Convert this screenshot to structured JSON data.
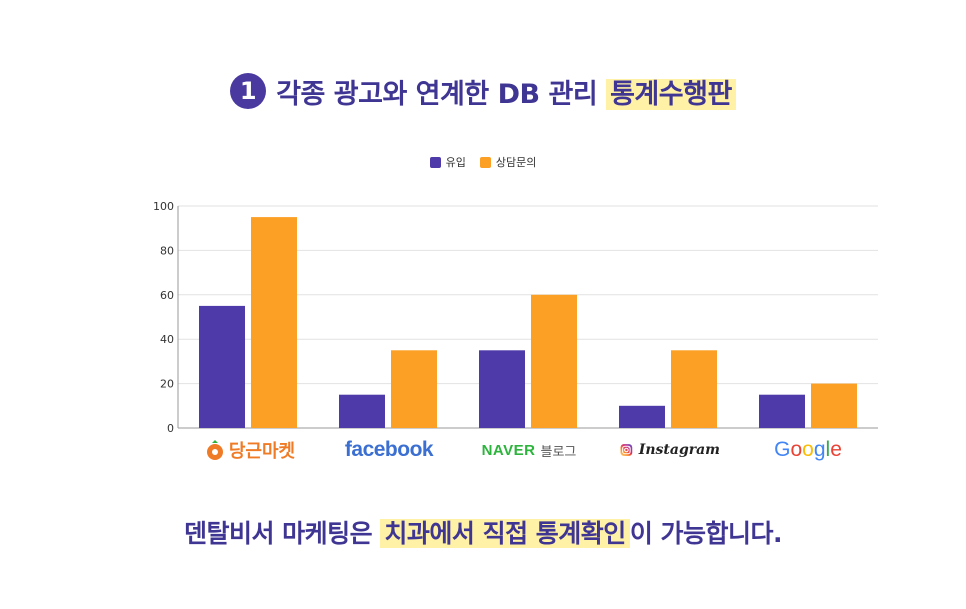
{
  "heading": {
    "number": "1",
    "text_before": "각종 광고와 연계한 DB 관리 ",
    "text_highlight": "통계수행판"
  },
  "chart_data": {
    "type": "bar",
    "categories": [
      "당근마켓",
      "facebook",
      "NAVER 블로그",
      "Instagram",
      "Google"
    ],
    "series": [
      {
        "name": "유입",
        "values": [
          55,
          15,
          35,
          10,
          15
        ],
        "color": "#4e3aa8"
      },
      {
        "name": "상담문의",
        "values": [
          95,
          35,
          60,
          35,
          20
        ],
        "color": "#fba025"
      }
    ],
    "ylim": [
      0,
      100
    ],
    "yticks": [
      "0",
      "20",
      "40",
      "60",
      "80",
      "100"
    ],
    "grid": true,
    "legend": "top-center"
  },
  "logos": {
    "karrot": {
      "text": "당근마켓",
      "color": "#f07b27"
    },
    "facebook": {
      "text": "facebook",
      "color": "#3b6fd1"
    },
    "naver": {
      "brand": "NAVER",
      "suffix": "블로그",
      "color": "#2db43c"
    },
    "instagram": {
      "text": "Instagram"
    },
    "google": {
      "text": "Google",
      "letter_colors": [
        "#4285F4",
        "#EA4335",
        "#FBBC05",
        "#4285F4",
        "#34A853",
        "#EA4335"
      ]
    }
  },
  "footer": {
    "text_before": "덴탈비서 마케팅은 ",
    "text_highlight": "치과에서 직접 통계확인",
    "text_after": "이 가능합니다."
  }
}
